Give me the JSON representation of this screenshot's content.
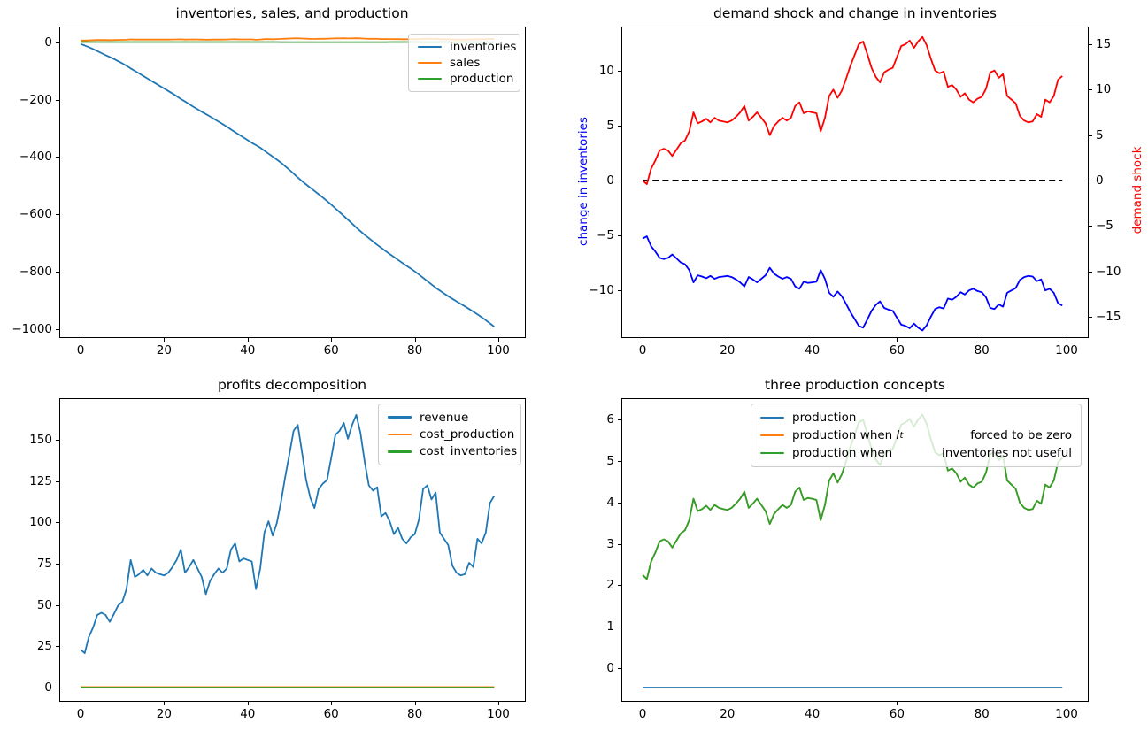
{
  "figure": {
    "background": "#ffffff",
    "grid": false,
    "n_points": 100,
    "x_range": [
      0,
      99
    ]
  },
  "colors": {
    "tab_blue": "#1f77b4",
    "tab_orange": "#ff7f0e",
    "tab_green": "#2ca02c",
    "pure_blue": "#0000ff",
    "pure_red": "#ff0000",
    "black": "#000000"
  },
  "chart_data": [
    {
      "type": "line",
      "title": "inventories, sales, and production",
      "xlabel": "",
      "ylabel": "",
      "xlim": [
        -5,
        105
      ],
      "ylim": [
        -1031,
        56
      ],
      "xticks": [
        0,
        20,
        40,
        60,
        80,
        100
      ],
      "yticks": [
        0,
        -200,
        -400,
        -600,
        -800,
        -1000
      ],
      "legend_position": "upper right",
      "series": [
        {
          "name": "inventories",
          "color": "#1f77b4",
          "values": [
            -5.3,
            -10.39,
            -16.38,
            -22.85,
            -29.9,
            -37.06,
            -44.11,
            -50.84,
            -57.94,
            -65.41,
            -73.04,
            -81.2,
            -90.48,
            -99.12,
            -107.87,
            -116.77,
            -125.46,
            -134.42,
            -143.22,
            -151.97,
            -160.66,
            -169.46,
            -178.47,
            -187.75,
            -197.4,
            -206.2,
            -215.21,
            -224.49,
            -233.45,
            -242.09,
            -250.04,
            -258.52,
            -267.27,
            -276.23,
            -285.03,
            -293.99,
            -303.64,
            -313.5,
            -322.72,
            -332.05,
            -341.33,
            -350.55,
            -358.71,
            -367.67,
            -377.9,
            -388.5,
            -398.62,
            -409.17,
            -420.41,
            -432.39,
            -445.0,
            -458.25,
            -471.66,
            -484.33,
            -496.2,
            -507.54,
            -518.56,
            -530.17,
            -541.94,
            -553.81,
            -566.32,
            -579.46,
            -592.71,
            -606.17,
            -619.21,
            -632.62,
            -646.29,
            -659.49,
            -671.89,
            -683.6,
            -695.15,
            -706.81,
            -717.57,
            -728.44,
            -739.04,
            -749.22,
            -759.61,
            -769.63,
            -779.49,
            -789.56,
            -799.74,
            -810.39,
            -822.0,
            -833.71,
            -845.0,
            -856.5,
            -866.73,
            -876.75,
            -886.56,
            -895.62,
            -904.42,
            -913.11,
            -921.86,
            -931.03,
            -940.04,
            -950.06,
            -959.92,
            -970.15,
            -981.33,
            -992.73
          ]
        },
        {
          "name": "sales",
          "color": "#ff7f0e",
          "values": [
            7.0,
            6.8,
            7.65,
            8.1,
            8.65,
            8.75,
            8.65,
            8.35,
            8.7,
            9.05,
            9.2,
            9.7,
            10.75,
            10.15,
            10.25,
            10.4,
            10.2,
            10.45,
            10.3,
            10.25,
            10.2,
            10.3,
            10.5,
            10.75,
            11.1,
            10.3,
            10.5,
            10.75,
            10.45,
            10.15,
            9.5,
            10.0,
            10.25,
            10.45,
            10.3,
            10.45,
            11.1,
            11.3,
            10.7,
            10.8,
            10.75,
            10.7,
            9.7,
            10.45,
            11.65,
            12.0,
            11.55,
            11.95,
            12.6,
            13.3,
            13.9,
            14.5,
            14.65,
            13.95,
            13.2,
            12.7,
            12.4,
            12.95,
            13.1,
            13.2,
            13.8,
            14.4,
            14.5,
            14.7,
            14.3,
            14.65,
            14.9,
            14.45,
            13.7,
            13.05,
            12.9,
            13.0,
            12.15,
            12.25,
            12.0,
            11.6,
            11.8,
            11.45,
            11.3,
            11.5,
            11.6,
            12.05,
            12.95,
            13.05,
            12.65,
            12.85,
            11.65,
            11.45,
            11.25,
            10.55,
            10.3,
            10.2,
            10.25,
            10.65,
            10.5,
            11.45,
            11.3,
            11.65,
            12.55,
            12.75
          ]
        },
        {
          "name": "production",
          "color": "#2ca02c",
          "values": [
            1.7,
            1.71,
            1.66,
            1.63,
            1.6,
            1.6,
            1.6,
            1.62,
            1.6,
            1.58,
            1.57,
            1.54,
            1.48,
            1.51,
            1.51,
            1.5,
            1.51,
            1.49,
            1.5,
            1.51,
            1.51,
            1.5,
            1.49,
            1.48,
            1.45,
            1.5,
            1.49,
            1.48,
            1.49,
            1.51,
            1.55,
            1.52,
            1.51,
            1.49,
            1.5,
            1.49,
            1.45,
            1.44,
            1.48,
            1.47,
            1.48,
            1.48,
            1.54,
            1.49,
            1.42,
            1.4,
            1.43,
            1.4,
            1.36,
            1.32,
            1.29,
            1.25,
            1.24,
            1.28,
            1.33,
            1.36,
            1.38,
            1.34,
            1.33,
            1.33,
            1.29,
            1.26,
            1.25,
            1.24,
            1.26,
            1.24,
            1.23,
            1.25,
            1.3,
            1.34,
            1.35,
            1.34,
            1.39,
            1.39,
            1.4,
            1.42,
            1.41,
            1.43,
            1.44,
            1.43,
            1.42,
            1.4,
            1.34,
            1.34,
            1.36,
            1.35,
            1.42,
            1.43,
            1.45,
            1.49,
            1.5,
            1.51,
            1.51,
            1.48,
            1.49,
            1.43,
            1.44,
            1.42,
            1.37,
            1.36
          ]
        }
      ]
    },
    {
      "type": "line",
      "title": "demand shock and change in inventories",
      "xlabel": "",
      "ylabel_left": "change in inventories",
      "ylabel_right": "demand shock",
      "xlim": [
        -5,
        105
      ],
      "ylim_left": [
        -14.1,
        14.3
      ],
      "ylim_right": [
        -17.3,
        17.6
      ],
      "xticks": [
        0,
        20,
        40,
        60,
        80,
        100
      ],
      "yticks_left": [
        10,
        5,
        0,
        -5,
        -10
      ],
      "yticks_right": [
        15,
        10,
        5,
        0,
        -5,
        -10,
        -15
      ],
      "series": [
        {
          "name": "change in inventories",
          "axis": "left",
          "color": "#0000ff",
          "values": [
            -5.3,
            -5.09,
            -5.99,
            -6.47,
            -7.05,
            -7.16,
            -7.05,
            -6.73,
            -7.1,
            -7.47,
            -7.63,
            -8.16,
            -9.28,
            -8.64,
            -8.75,
            -8.9,
            -8.69,
            -8.96,
            -8.8,
            -8.75,
            -8.69,
            -8.8,
            -9.01,
            -9.28,
            -9.65,
            -8.8,
            -9.01,
            -9.28,
            -8.96,
            -8.64,
            -7.95,
            -8.48,
            -8.75,
            -8.96,
            -8.8,
            -8.96,
            -9.65,
            -9.86,
            -9.22,
            -9.33,
            -9.28,
            -9.22,
            -8.16,
            -8.96,
            -10.23,
            -10.6,
            -10.12,
            -10.55,
            -11.24,
            -11.98,
            -12.61,
            -13.25,
            -13.41,
            -12.67,
            -11.87,
            -11.34,
            -11.02,
            -11.61,
            -11.77,
            -11.87,
            -12.51,
            -13.14,
            -13.25,
            -13.46,
            -13.04,
            -13.41,
            -13.67,
            -13.2,
            -12.4,
            -11.71,
            -11.55,
            -11.66,
            -10.76,
            -10.87,
            -10.6,
            -10.18,
            -10.39,
            -10.02,
            -9.86,
            -10.07,
            -10.18,
            -10.65,
            -11.61,
            -11.71,
            -11.29,
            -11.5,
            -10.23,
            -10.02,
            -9.81,
            -9.06,
            -8.8,
            -8.69,
            -8.75,
            -9.17,
            -9.01,
            -10.02,
            -9.86,
            -10.23,
            -11.18,
            -11.4
          ]
        },
        {
          "name": "zero reference",
          "axis": "left",
          "color": "#000000",
          "dashed": true,
          "constant": 0
        },
        {
          "name": "demand shock",
          "axis": "right",
          "color": "#ff0000",
          "values": [
            0.0,
            -0.4,
            1.3,
            2.2,
            3.3,
            3.5,
            3.3,
            2.7,
            3.4,
            4.1,
            4.4,
            5.4,
            7.5,
            6.3,
            6.5,
            6.8,
            6.4,
            6.9,
            6.6,
            6.5,
            6.4,
            6.6,
            7.0,
            7.5,
            8.2,
            6.6,
            7.0,
            7.5,
            6.9,
            6.3,
            5.0,
            6.0,
            6.5,
            6.9,
            6.6,
            6.9,
            8.2,
            8.6,
            7.4,
            7.6,
            7.5,
            7.4,
            5.4,
            6.9,
            9.3,
            10.0,
            9.1,
            9.9,
            11.2,
            12.6,
            13.8,
            15.0,
            15.3,
            13.9,
            12.4,
            11.4,
            10.8,
            11.9,
            12.2,
            12.4,
            13.6,
            14.8,
            15.0,
            15.4,
            14.6,
            15.3,
            15.8,
            14.9,
            13.4,
            12.1,
            11.8,
            12.0,
            10.3,
            10.5,
            10.0,
            9.2,
            9.6,
            8.9,
            8.6,
            9.0,
            9.2,
            10.1,
            11.9,
            12.1,
            11.3,
            11.7,
            9.3,
            8.9,
            8.5,
            7.1,
            6.6,
            6.4,
            6.5,
            7.3,
            7.0,
            8.9,
            8.6,
            9.3,
            11.1,
            11.5
          ]
        }
      ]
    },
    {
      "type": "line",
      "title": "profits decomposition",
      "xlabel": "",
      "ylabel": "",
      "xlim": [
        -5,
        105
      ],
      "ylim": [
        -8,
        175
      ],
      "xticks": [
        0,
        20,
        40,
        60,
        80,
        100
      ],
      "yticks": [
        0,
        25,
        50,
        75,
        100,
        125,
        150
      ],
      "legend_position": "upper right",
      "series": [
        {
          "name": "revenue",
          "color": "#1f77b4",
          "values": [
            23.0,
            20.8,
            30.7,
            36.4,
            43.9,
            45.3,
            43.9,
            39.8,
            44.6,
            49.7,
            51.9,
            59.6,
            77.2,
            66.9,
            68.6,
            71.2,
            67.8,
            72.0,
            69.5,
            68.6,
            67.8,
            69.5,
            72.9,
            77.2,
            83.5,
            69.5,
            72.9,
            77.2,
            72.0,
            66.9,
            56.5,
            64.5,
            68.6,
            72.0,
            69.5,
            72.0,
            83.5,
            87.2,
            76.3,
            78.1,
            77.2,
            76.3,
            59.6,
            72.0,
            93.8,
            100.6,
            91.9,
            99.6,
            112.8,
            127.7,
            141.2,
            155.3,
            158.9,
            142.4,
            125.5,
            114.8,
            108.6,
            120.1,
            123.4,
            125.5,
            138.9,
            152.9,
            155.3,
            160.1,
            150.5,
            158.9,
            165.0,
            154.1,
            136.6,
            122.3,
            119.1,
            121.2,
            103.6,
            105.6,
            100.6,
            92.8,
            96.7,
            90.0,
            87.2,
            90.9,
            92.8,
            101.6,
            120.1,
            122.3,
            113.8,
            118.0,
            93.8,
            90.0,
            86.2,
            73.7,
            69.5,
            67.8,
            68.6,
            75.5,
            72.9,
            90.0,
            87.2,
            93.8,
            111.7,
            115.9
          ]
        },
        {
          "name": "cost_production",
          "color": "#ff7f0e",
          "constant": 0.3
        },
        {
          "name": "cost_inventories",
          "color": "#2ca02c",
          "constant": 0.0
        }
      ]
    },
    {
      "type": "line",
      "title": "three production concepts",
      "xlabel": "",
      "ylabel": "",
      "xlim": [
        -5,
        105
      ],
      "ylim": [
        -0.8,
        6.45
      ],
      "xticks": [
        0,
        20,
        40,
        60,
        80,
        100
      ],
      "yticks": [
        0,
        1,
        2,
        3,
        4,
        5,
        6
      ],
      "legend_position": "upper center",
      "legend": {
        "row1": "production",
        "row2_pre": "production when ",
        "row2_math_base": "I",
        "row2_math_sub": "t",
        "row2_post": "forced to be zero",
        "row3_pre": "production when",
        "row3_post": "inventories not useful"
      },
      "series": [
        {
          "name": "production",
          "color": "#1f77b4",
          "constant": -0.47
        },
        {
          "name": "production when It forced to be zero",
          "color": "#ff7f0e",
          "values": [
            2.25,
            2.15,
            2.57,
            2.79,
            3.06,
            3.11,
            3.06,
            2.91,
            3.08,
            3.25,
            3.33,
            3.57,
            4.09,
            3.79,
            3.84,
            3.92,
            3.82,
            3.94,
            3.87,
            3.84,
            3.82,
            3.87,
            3.97,
            4.09,
            4.26,
            3.87,
            3.97,
            4.09,
            3.94,
            3.79,
            3.48,
            3.72,
            3.84,
            3.94,
            3.87,
            3.94,
            4.26,
            4.36,
            4.06,
            4.11,
            4.09,
            4.06,
            3.57,
            3.94,
            4.53,
            4.7,
            4.48,
            4.68,
            4.99,
            5.34,
            5.63,
            5.93,
            6.0,
            5.66,
            5.29,
            5.04,
            4.9,
            5.17,
            5.24,
            5.29,
            5.58,
            5.88,
            5.93,
            6.02,
            5.83,
            6.0,
            6.12,
            5.9,
            5.53,
            5.21,
            5.14,
            5.19,
            4.77,
            4.82,
            4.7,
            4.5,
            4.6,
            4.43,
            4.36,
            4.46,
            4.5,
            4.72,
            5.17,
            5.21,
            5.02,
            5.12,
            4.53,
            4.43,
            4.33,
            3.99,
            3.87,
            3.82,
            3.84,
            4.04,
            3.97,
            4.43,
            4.36,
            4.53,
            4.97,
            5.07
          ]
        },
        {
          "name": "production when inventories not useful",
          "color": "#2ca02c",
          "values": [
            2.25,
            2.15,
            2.57,
            2.79,
            3.06,
            3.11,
            3.06,
            2.91,
            3.08,
            3.25,
            3.33,
            3.57,
            4.09,
            3.79,
            3.84,
            3.92,
            3.82,
            3.94,
            3.87,
            3.84,
            3.82,
            3.87,
            3.97,
            4.09,
            4.26,
            3.87,
            3.97,
            4.09,
            3.94,
            3.79,
            3.48,
            3.72,
            3.84,
            3.94,
            3.87,
            3.94,
            4.26,
            4.36,
            4.06,
            4.11,
            4.09,
            4.06,
            3.57,
            3.94,
            4.53,
            4.7,
            4.48,
            4.68,
            4.99,
            5.34,
            5.63,
            5.93,
            6.0,
            5.66,
            5.29,
            5.04,
            4.9,
            5.17,
            5.24,
            5.29,
            5.58,
            5.88,
            5.93,
            6.02,
            5.83,
            6.0,
            6.12,
            5.9,
            5.53,
            5.21,
            5.14,
            5.19,
            4.77,
            4.82,
            4.7,
            4.5,
            4.6,
            4.43,
            4.36,
            4.46,
            4.5,
            4.72,
            5.17,
            5.21,
            5.02,
            5.12,
            4.53,
            4.43,
            4.33,
            3.99,
            3.87,
            3.82,
            3.84,
            4.04,
            3.97,
            4.43,
            4.36,
            4.53,
            4.97,
            5.07
          ]
        }
      ]
    }
  ]
}
